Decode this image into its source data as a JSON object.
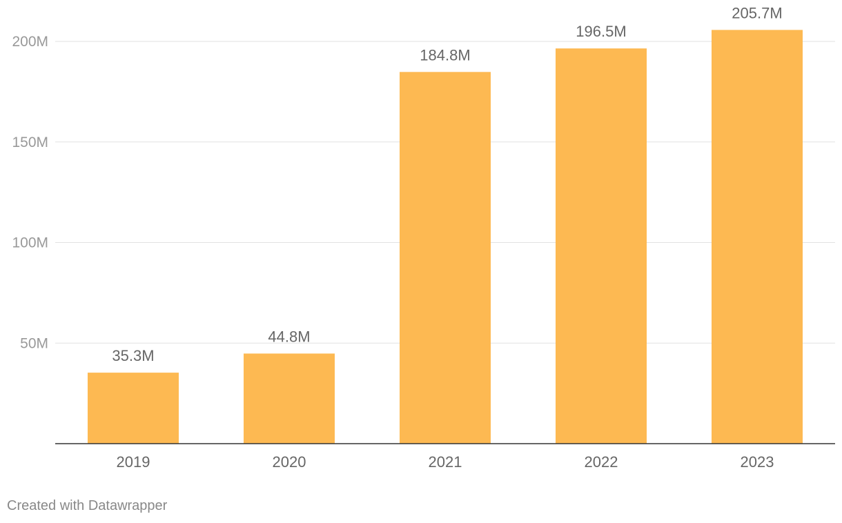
{
  "chart_data": {
    "type": "bar",
    "categories": [
      "2019",
      "2020",
      "2021",
      "2022",
      "2023"
    ],
    "values": [
      35.3,
      44.8,
      184.8,
      196.5,
      205.7
    ],
    "value_labels": [
      "35.3M",
      "44.8M",
      "184.8M",
      "196.5M",
      "205.7M"
    ],
    "unit": "M",
    "title": "",
    "xlabel": "",
    "ylabel": "",
    "ylim": [
      0,
      200
    ],
    "yticks": [
      50,
      100,
      150,
      200
    ],
    "ytick_labels": [
      "50M",
      "100M",
      "150M",
      "200M"
    ],
    "grid": true,
    "bar_color": "#fdb952",
    "gridline_color": "#e2e2e2",
    "baseline_color": "#333333",
    "label_color": "#666666",
    "tick_label_color": "#999999"
  },
  "footer": {
    "credit": "Created with Datawrapper"
  }
}
